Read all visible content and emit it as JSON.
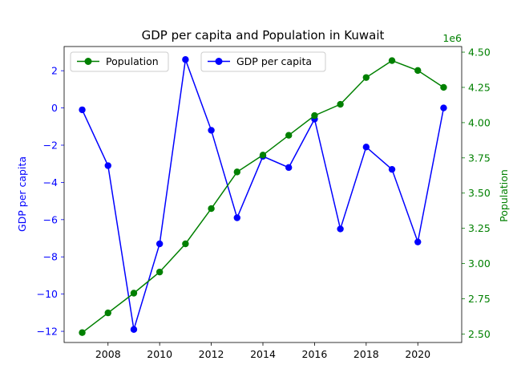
{
  "chart_data": {
    "type": "line",
    "title": "GDP per capita and Population in Kuwait",
    "x": [
      2007,
      2008,
      2009,
      2010,
      2011,
      2012,
      2013,
      2014,
      2015,
      2016,
      2017,
      2018,
      2019,
      2020,
      2021
    ],
    "xticks": [
      "2008",
      "2010",
      "2012",
      "2014",
      "2016",
      "2018",
      "2020"
    ],
    "series": [
      {
        "name": "GDP per capita",
        "axis": "left",
        "color": "#0000ff",
        "values": [
          -0.1,
          -3.1,
          -11.9,
          -7.3,
          2.6,
          -1.2,
          -5.9,
          -2.6,
          -3.2,
          -0.6,
          -6.5,
          -2.1,
          -3.3,
          -7.2,
          0.0
        ]
      },
      {
        "name": "Population",
        "axis": "right",
        "color": "#008000",
        "values": [
          2.51,
          2.65,
          2.79,
          2.94,
          3.14,
          3.39,
          3.65,
          3.77,
          3.91,
          4.05,
          4.13,
          4.32,
          4.44,
          4.37,
          4.25
        ]
      }
    ],
    "y_left": {
      "label": "GDP per capita",
      "lim": [
        -12.6,
        3.3
      ],
      "ticks": [
        "−12",
        "−10",
        "−8",
        "−6",
        "−4",
        "−2",
        "0",
        "2"
      ],
      "tick_values": [
        -12,
        -10,
        -8,
        -6,
        -4,
        -2,
        0,
        2
      ],
      "color": "#0000ff"
    },
    "y_right": {
      "label": "Population",
      "offset_text": "1e6",
      "lim": [
        2.44,
        4.54
      ],
      "ticks": [
        "2.50",
        "2.75",
        "3.00",
        "3.25",
        "3.50",
        "3.75",
        "4.00",
        "4.25",
        "4.50"
      ],
      "tick_values": [
        2.5,
        2.75,
        3.0,
        3.25,
        3.5,
        3.75,
        4.0,
        4.25,
        4.5
      ],
      "color": "#008000"
    },
    "xlim": [
      2006.3,
      2021.7
    ],
    "grid": false,
    "legends": [
      {
        "series": "Population",
        "placement": "top-left"
      },
      {
        "series": "GDP per capita",
        "placement": "upper-center"
      }
    ]
  }
}
